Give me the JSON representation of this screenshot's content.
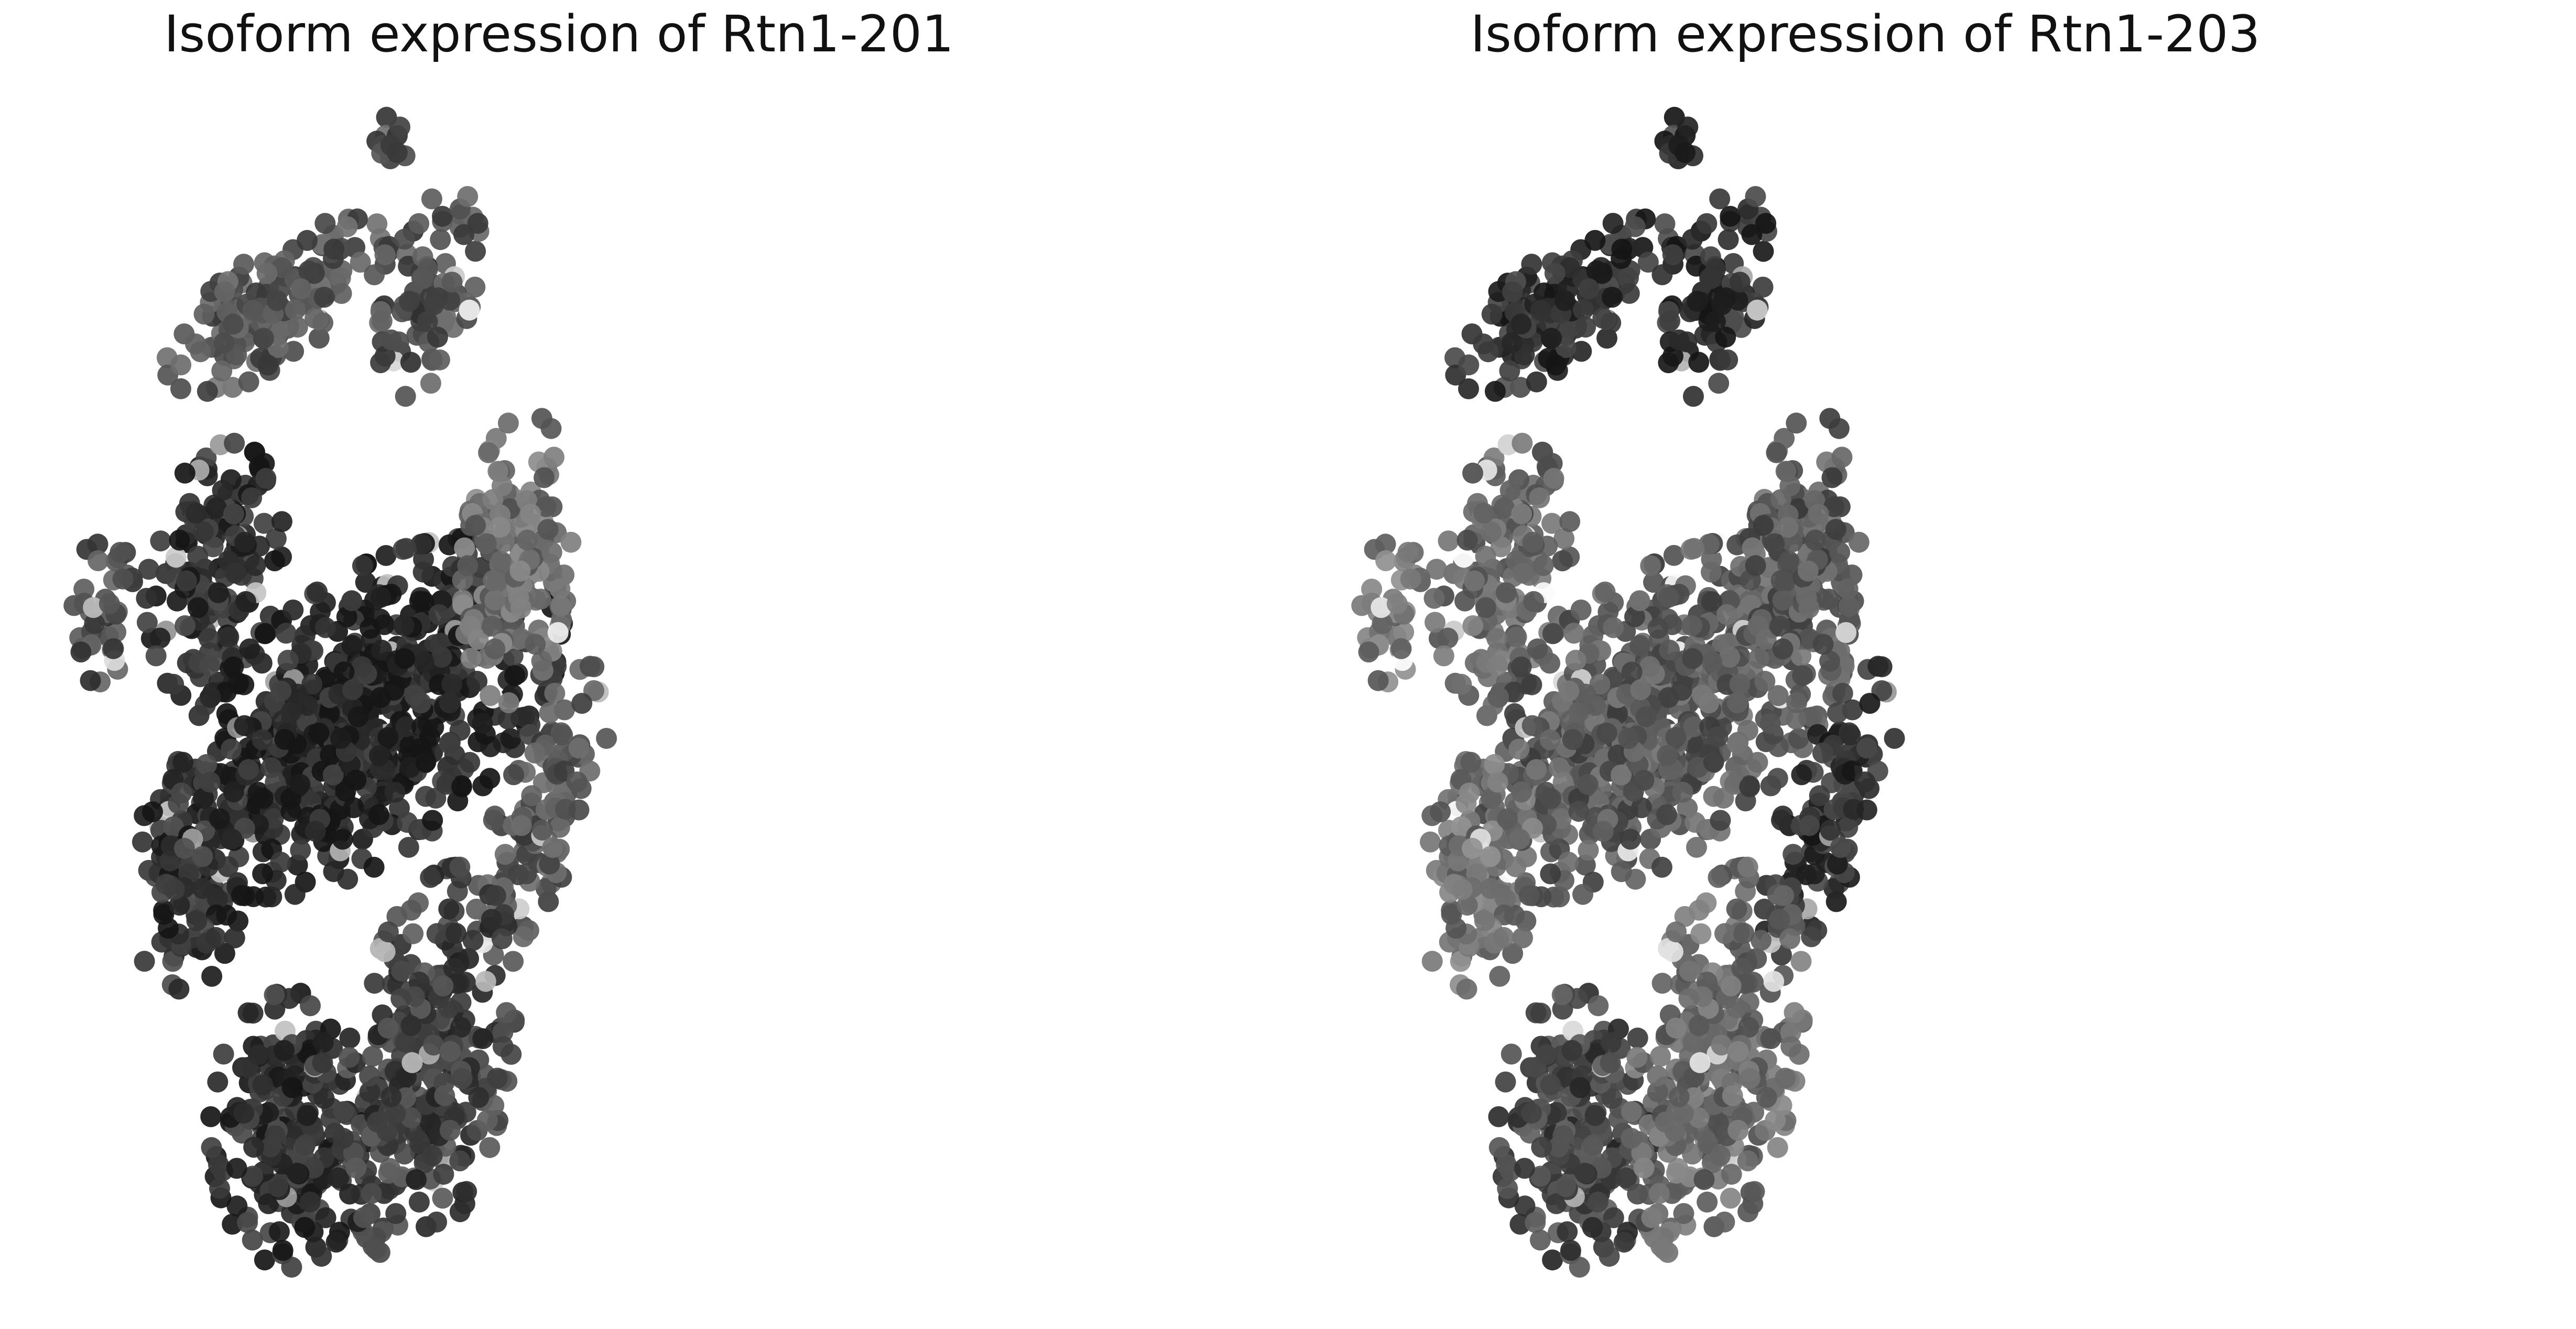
{
  "chart_data": [
    {
      "type": "scatter",
      "title": "Isoform expression of Rtn1-201",
      "xlabel": "",
      "ylabel": "",
      "axes": "off",
      "grid": false,
      "legend": "none",
      "marker_color_scale": [
        "#ffffff",
        "#161616"
      ],
      "clusters": [
        {
          "cx": 0.31,
          "cy": 0.11,
          "rx": 0.01,
          "ry": 0.02,
          "angle": 0,
          "level": 0.75,
          "n": 12
        },
        {
          "cx": 0.22,
          "cy": 0.23,
          "rx": 0.09,
          "ry": 0.035,
          "angle": -35,
          "level": 0.72,
          "n": 150
        },
        {
          "cx": 0.34,
          "cy": 0.22,
          "rx": 0.03,
          "ry": 0.07,
          "angle": 15,
          "level": 0.75,
          "n": 80
        },
        {
          "cx": 0.17,
          "cy": 0.43,
          "rx": 0.045,
          "ry": 0.085,
          "angle": 10,
          "level": 0.9,
          "n": 160
        },
        {
          "cx": 0.08,
          "cy": 0.46,
          "rx": 0.022,
          "ry": 0.05,
          "angle": 5,
          "level": 0.78,
          "n": 40
        },
        {
          "cx": 0.29,
          "cy": 0.54,
          "rx": 0.16,
          "ry": 0.085,
          "angle": -40,
          "level": 0.93,
          "n": 700
        },
        {
          "cx": 0.41,
          "cy": 0.42,
          "rx": 0.037,
          "ry": 0.095,
          "angle": 5,
          "level": 0.62,
          "n": 160
        },
        {
          "cx": 0.43,
          "cy": 0.61,
          "rx": 0.03,
          "ry": 0.1,
          "angle": 20,
          "level": 0.72,
          "n": 120
        },
        {
          "cx": 0.15,
          "cy": 0.66,
          "rx": 0.04,
          "ry": 0.075,
          "angle": 5,
          "level": 0.88,
          "n": 110
        },
        {
          "cx": 0.23,
          "cy": 0.85,
          "rx": 0.055,
          "ry": 0.09,
          "angle": 0,
          "level": 0.9,
          "n": 220
        },
        {
          "cx": 0.34,
          "cy": 0.8,
          "rx": 0.055,
          "ry": 0.13,
          "angle": 10,
          "level": 0.82,
          "n": 300
        }
      ]
    },
    {
      "type": "scatter",
      "title": "Isoform expression of Rtn1-203",
      "xlabel": "",
      "ylabel": "",
      "axes": "off",
      "grid": false,
      "legend": "none",
      "marker_color_scale": [
        "#ffffff",
        "#161616"
      ],
      "clusters": [
        {
          "cx": 0.31,
          "cy": 0.11,
          "rx": 0.01,
          "ry": 0.02,
          "angle": 0,
          "level": 0.88,
          "n": 12
        },
        {
          "cx": 0.22,
          "cy": 0.23,
          "rx": 0.09,
          "ry": 0.035,
          "angle": -35,
          "level": 0.88,
          "n": 150
        },
        {
          "cx": 0.34,
          "cy": 0.22,
          "rx": 0.03,
          "ry": 0.07,
          "angle": 15,
          "level": 0.9,
          "n": 80
        },
        {
          "cx": 0.17,
          "cy": 0.43,
          "rx": 0.045,
          "ry": 0.085,
          "angle": 10,
          "level": 0.66,
          "n": 160
        },
        {
          "cx": 0.08,
          "cy": 0.46,
          "rx": 0.022,
          "ry": 0.05,
          "angle": 5,
          "level": 0.6,
          "n": 40
        },
        {
          "cx": 0.29,
          "cy": 0.54,
          "rx": 0.16,
          "ry": 0.085,
          "angle": -40,
          "level": 0.7,
          "n": 700
        },
        {
          "cx": 0.41,
          "cy": 0.42,
          "rx": 0.037,
          "ry": 0.095,
          "angle": 5,
          "level": 0.72,
          "n": 160
        },
        {
          "cx": 0.43,
          "cy": 0.61,
          "rx": 0.03,
          "ry": 0.1,
          "angle": 20,
          "level": 0.88,
          "n": 120
        },
        {
          "cx": 0.15,
          "cy": 0.66,
          "rx": 0.04,
          "ry": 0.075,
          "angle": 5,
          "level": 0.6,
          "n": 110
        },
        {
          "cx": 0.23,
          "cy": 0.85,
          "rx": 0.055,
          "ry": 0.09,
          "angle": 0,
          "level": 0.8,
          "n": 220
        },
        {
          "cx": 0.34,
          "cy": 0.8,
          "rx": 0.055,
          "ry": 0.13,
          "angle": 10,
          "level": 0.64,
          "n": 300
        }
      ]
    }
  ]
}
